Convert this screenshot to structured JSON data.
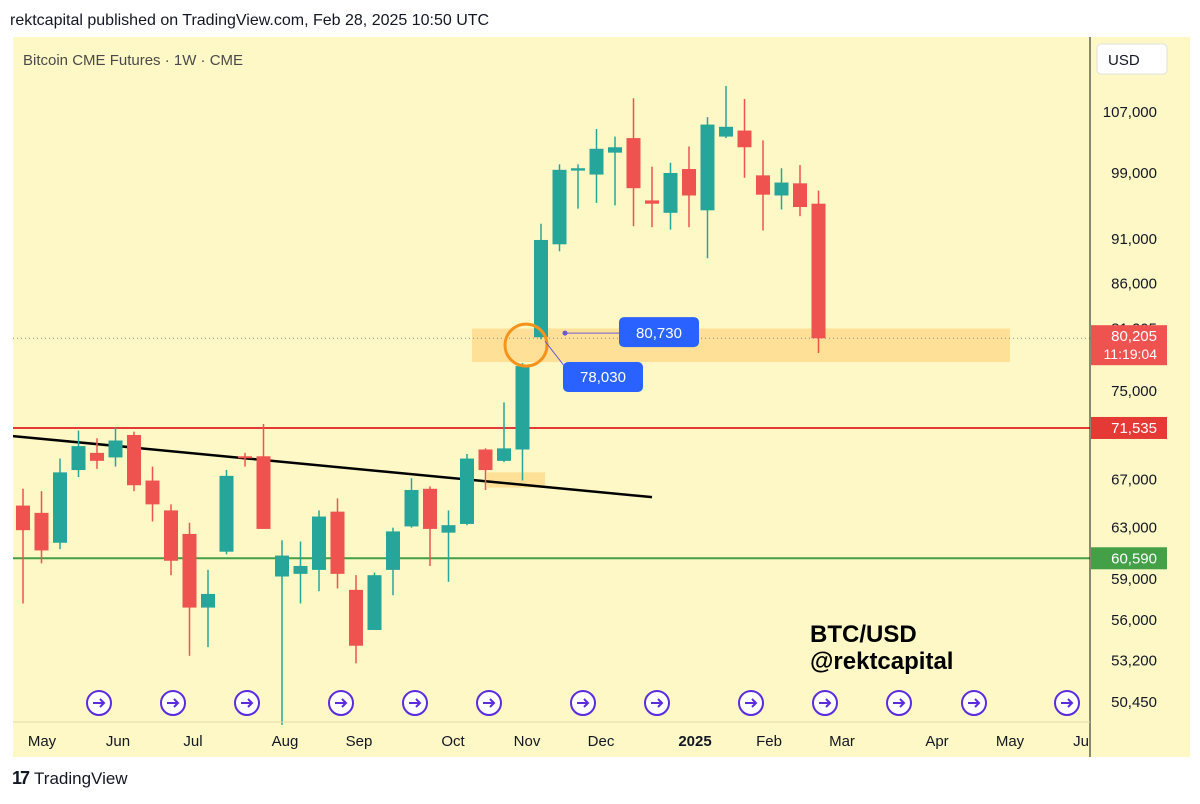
{
  "header": {
    "text": "rektcapital published on TradingView.com, Feb 28, 2025 10:50 UTC"
  },
  "chart": {
    "legend_title": "Bitcoin CME Futures · 1W · CME",
    "currency": "USD",
    "watermark_line1": "BTC/USD",
    "watermark_line2": "@rektcapital",
    "current_price_label": "80,205",
    "countdown_label": "11:19:04",
    "support_zone_label": "80,730",
    "breakout_label": "78,030"
  },
  "footer": {
    "logo": "17",
    "brand": "TradingView"
  },
  "colors": {
    "background": "#fdf8c6",
    "bull": "#26a69a",
    "bear": "#ef5350",
    "zone": "#ffd98a",
    "red_level": "#e53935",
    "green_level": "#43a047",
    "label_blue": "#2962ff",
    "circle": "#f7931a",
    "event_icon": "#5b2be0"
  },
  "chart_data": {
    "type": "candlestick",
    "title": "Bitcoin CME Futures · 1W · CME",
    "y_axis_labels": [
      "107,000",
      "99,000",
      "91,000",
      "86,000",
      "81,205",
      "75,000",
      "71,535",
      "67,000",
      "63,000",
      "60,590",
      "59,000",
      "56,000",
      "53,200",
      "50,450"
    ],
    "x_axis_labels": [
      "May",
      "Jun",
      "Jul",
      "Aug",
      "Sep",
      "Oct",
      "Nov",
      "Dec",
      "2025",
      "Feb",
      "Mar",
      "Apr",
      "May",
      "Ju"
    ],
    "horizontal_levels": [
      {
        "value": 71535,
        "label": "71,535",
        "color": "#e53935"
      },
      {
        "value": 60590,
        "label": "60,590",
        "color": "#43a047"
      }
    ],
    "current_price": 80205,
    "support_zone": [
      77800,
      81200
    ],
    "trendline": [
      {
        "x_index": 0,
        "price": 70800
      },
      {
        "x_index": 34,
        "price": 65500
      }
    ],
    "candles": [
      {
        "open": 64800,
        "high": 66200,
        "low": 57200,
        "close": 62800
      },
      {
        "open": 64200,
        "high": 66000,
        "low": 60200,
        "close": 61200
      },
      {
        "open": 61800,
        "high": 68800,
        "low": 61300,
        "close": 67600
      },
      {
        "open": 67800,
        "high": 71300,
        "low": 67200,
        "close": 69900
      },
      {
        "open": 69300,
        "high": 70600,
        "low": 67900,
        "close": 68600
      },
      {
        "open": 68900,
        "high": 71600,
        "low": 68100,
        "close": 70400
      },
      {
        "open": 70900,
        "high": 71200,
        "low": 66000,
        "close": 66500
      },
      {
        "open": 66900,
        "high": 68100,
        "low": 63500,
        "close": 64900
      },
      {
        "open": 64400,
        "high": 64900,
        "low": 59300,
        "close": 60400
      },
      {
        "open": 62500,
        "high": 63400,
        "low": 53500,
        "close": 56900
      },
      {
        "open": 56900,
        "high": 59700,
        "low": 54100,
        "close": 57900
      },
      {
        "open": 61100,
        "high": 67800,
        "low": 60900,
        "close": 67300
      },
      {
        "open": 69000,
        "high": 69300,
        "low": 68100,
        "close": 68900
      },
      {
        "open": 69000,
        "high": 71900,
        "low": 62900,
        "close": 62900
      },
      {
        "open": 59200,
        "high": 62000,
        "low": 49000,
        "close": 60800
      },
      {
        "open": 59400,
        "high": 61900,
        "low": 57200,
        "close": 60000
      },
      {
        "open": 59700,
        "high": 64400,
        "low": 58100,
        "close": 63900
      },
      {
        "open": 64300,
        "high": 65400,
        "low": 58300,
        "close": 59400
      },
      {
        "open": 58200,
        "high": 59300,
        "low": 53000,
        "close": 54200
      },
      {
        "open": 55300,
        "high": 59500,
        "low": 55300,
        "close": 59300
      },
      {
        "open": 59700,
        "high": 63000,
        "low": 57800,
        "close": 62700
      },
      {
        "open": 63100,
        "high": 67100,
        "low": 63000,
        "close": 66100
      },
      {
        "open": 66200,
        "high": 66400,
        "low": 60000,
        "close": 62900
      },
      {
        "open": 62600,
        "high": 64400,
        "low": 58800,
        "close": 63200
      },
      {
        "open": 63300,
        "high": 69200,
        "low": 63200,
        "close": 68800
      },
      {
        "open": 69600,
        "high": 69700,
        "low": 66100,
        "close": 67800
      },
      {
        "open": 68600,
        "high": 73900,
        "low": 68500,
        "close": 69700
      },
      {
        "open": 69600,
        "high": 77700,
        "low": 66900,
        "close": 77400
      },
      {
        "open": 80300,
        "high": 92800,
        "low": 80100,
        "close": 90900
      },
      {
        "open": 90400,
        "high": 100100,
        "low": 89600,
        "close": 99400
      },
      {
        "open": 99300,
        "high": 100100,
        "low": 94600,
        "close": 99600
      },
      {
        "open": 98800,
        "high": 104700,
        "low": 95300,
        "close": 102100
      },
      {
        "open": 101600,
        "high": 103700,
        "low": 95000,
        "close": 102300
      },
      {
        "open": 103500,
        "high": 108900,
        "low": 92500,
        "close": 97100
      },
      {
        "open": 95600,
        "high": 99800,
        "low": 92400,
        "close": 95200
      },
      {
        "open": 94100,
        "high": 100300,
        "low": 92100,
        "close": 99000
      },
      {
        "open": 99500,
        "high": 102400,
        "low": 92400,
        "close": 96200
      },
      {
        "open": 94400,
        "high": 106300,
        "low": 88800,
        "close": 105300
      },
      {
        "open": 103700,
        "high": 110600,
        "low": 103500,
        "close": 105000
      },
      {
        "open": 104500,
        "high": 108800,
        "low": 98400,
        "close": 102300
      },
      {
        "open": 98700,
        "high": 103200,
        "low": 92000,
        "close": 96300
      },
      {
        "open": 96200,
        "high": 99600,
        "low": 94500,
        "close": 97800
      },
      {
        "open": 97700,
        "high": 100000,
        "low": 93700,
        "close": 94800
      },
      {
        "open": 95200,
        "high": 96800,
        "low": 78700,
        "close": 80200
      }
    ]
  }
}
